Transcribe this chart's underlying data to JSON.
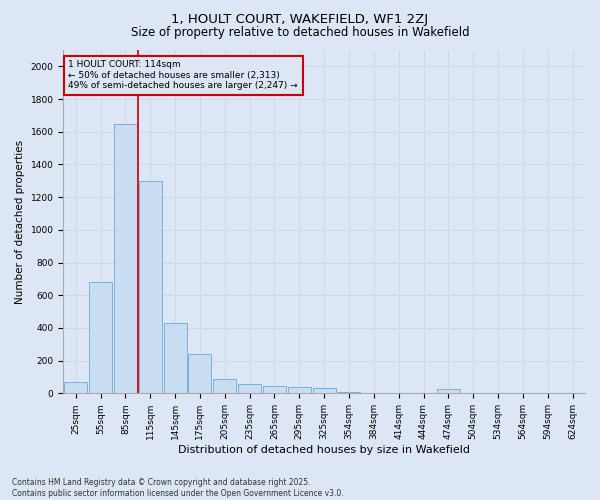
{
  "title": "1, HOULT COURT, WAKEFIELD, WF1 2ZJ",
  "subtitle": "Size of property relative to detached houses in Wakefield",
  "xlabel": "Distribution of detached houses by size in Wakefield",
  "ylabel": "Number of detached properties",
  "categories": [
    "25sqm",
    "55sqm",
    "85sqm",
    "115sqm",
    "145sqm",
    "175sqm",
    "205sqm",
    "235sqm",
    "265sqm",
    "295sqm",
    "325sqm",
    "354sqm",
    "384sqm",
    "414sqm",
    "444sqm",
    "474sqm",
    "504sqm",
    "534sqm",
    "564sqm",
    "594sqm",
    "624sqm"
  ],
  "values": [
    70,
    680,
    1650,
    1300,
    430,
    240,
    90,
    55,
    45,
    40,
    30,
    10,
    0,
    0,
    0,
    25,
    0,
    0,
    0,
    0,
    0
  ],
  "bar_color": "#c9ddf2",
  "bar_edge_color": "#6aaad4",
  "grid_color": "#cdd8ea",
  "bg_color": "#dce6f5",
  "vline_color": "#cc0000",
  "annotation_text": "1 HOULT COURT: 114sqm\n← 50% of detached houses are smaller (2,313)\n49% of semi-detached houses are larger (2,247) →",
  "annotation_box_color": "#cc0000",
  "ylim": [
    0,
    2100
  ],
  "yticks": [
    0,
    200,
    400,
    600,
    800,
    1000,
    1200,
    1400,
    1600,
    1800,
    2000
  ],
  "footnote": "Contains HM Land Registry data © Crown copyright and database right 2025.\nContains public sector information licensed under the Open Government Licence v3.0.",
  "title_fontsize": 9.5,
  "subtitle_fontsize": 8.5,
  "xlabel_fontsize": 8,
  "ylabel_fontsize": 7.5,
  "tick_fontsize": 6.5,
  "annotation_fontsize": 6.5,
  "footnote_fontsize": 5.5
}
